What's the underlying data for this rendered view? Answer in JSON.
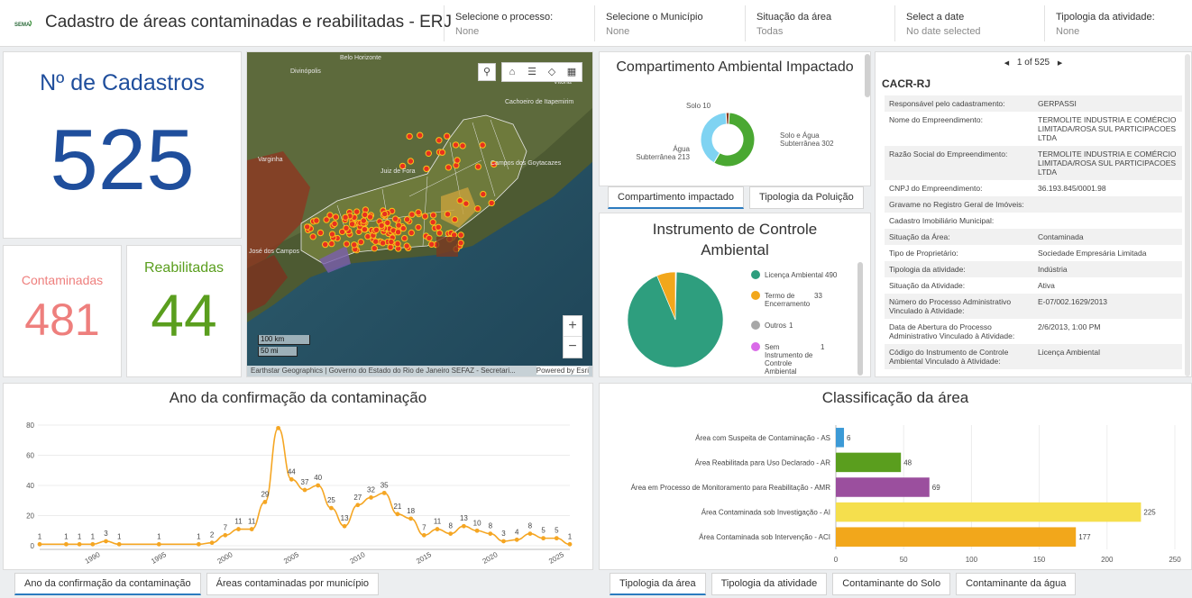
{
  "header": {
    "title": "Cadastro de áreas contaminadas e reabilitadas - ERJ",
    "logo_text": "SEMA",
    "filters": [
      {
        "label": "Selecione o processo:",
        "value": "None"
      },
      {
        "label": "Selecione o Município",
        "value": "None"
      },
      {
        "label": "Situação da área",
        "value": "Todas"
      },
      {
        "label": "Select a date",
        "value": "No date selected"
      },
      {
        "label": "Tipologia da atividade:",
        "value": "None"
      }
    ]
  },
  "indicators": {
    "total": {
      "title": "Nº de Cadastros",
      "value": "525",
      "color": "#1f4e9c"
    },
    "contaminadas": {
      "title": "Contaminadas",
      "value": "481",
      "color": "#ee7f7d"
    },
    "reabilitadas": {
      "title": "Reabilitadas",
      "value": "44",
      "color": "#5a9e1e"
    }
  },
  "map": {
    "toolbar_icons": [
      "search-icon",
      "home-icon",
      "list-icon",
      "layers-icon",
      "basemap-gallery-icon"
    ],
    "zoom_in": "+",
    "zoom_out": "−",
    "scale_km": "100 km",
    "scale_mi": "50 mi",
    "attribution": "Earthstar Geographics | Governo do Estado do Rio de Janeiro SEFAZ - Secretari...",
    "powered_by": "Powered by Esri",
    "place_labels": [
      "Belo Horizonte",
      "Divinópolis",
      "Cachoeiro de Itapemirim",
      "Vitória",
      "Varginha",
      "Juiz de Fora",
      "Campos dos Goytacazes",
      "José dos Campos"
    ]
  },
  "compartimento": {
    "title": "Compartimento Ambiental Impactado",
    "tabs": [
      "Compartimento impactado",
      "Tipologia da Poluição"
    ],
    "chart_data": {
      "type": "pie",
      "title": "Compartimento Ambiental Impactado",
      "donut": true,
      "slices": [
        {
          "name": "Solo e Água Subterrânea",
          "value": 302,
          "color": "#4aa832"
        },
        {
          "name": "Água Subterrânea",
          "value": 213,
          "color": "#7fd3f2"
        },
        {
          "name": "Solo",
          "value": 10,
          "color": "#8a3a1a"
        }
      ]
    },
    "labels": {
      "solo": "Solo 10",
      "agua": "Água Subterrânea 213",
      "solo_agua": "Solo e Água Subterrânea 302"
    }
  },
  "instrumento": {
    "title": "Instrumento de Controle Ambiental",
    "chart_data": {
      "type": "pie",
      "title": "Instrumento de Controle Ambiental",
      "legend": "right",
      "slices": [
        {
          "name": "Licença Ambiental",
          "value": 490,
          "color": "#2e9e7e"
        },
        {
          "name": "Termo de Encerramento",
          "value": 33,
          "color": "#f2a71b"
        },
        {
          "name": "Outros",
          "value": 1,
          "color": "#a7a7a7"
        },
        {
          "name": "Sem Instrumento de Controle Ambiental",
          "value": 1,
          "color": "#d96ae8"
        }
      ]
    },
    "legend": [
      {
        "label": "Licença Ambiental",
        "count": "490"
      },
      {
        "label": "Termo de Encerramento",
        "count": "33"
      },
      {
        "label": "Outros",
        "count": "1"
      },
      {
        "label": "Sem Instrumento de Controle Ambiental",
        "count": "1"
      }
    ]
  },
  "details": {
    "pager": "1 of 525",
    "prev": "◀",
    "next": "▶",
    "title": "CACR-RJ",
    "fields": [
      {
        "k": "Responsável pelo cadastramento:",
        "v": "GERPASSI"
      },
      {
        "k": "Nome do Empreendimento:",
        "v": "TERMOLITE INDUSTRIA E COMÉRCIO LIMITADA/ROSA SUL PARTICIPACOES LTDA"
      },
      {
        "k": "Razão Social do Empreendimento:",
        "v": "TERMOLITE INDUSTRIA E COMÉRCIO LIMITADA/ROSA SUL PARTICIPACOES LTDA"
      },
      {
        "k": "CNPJ do Empreendimento:",
        "v": "36.193.845/0001.98"
      },
      {
        "k": "Gravame no Registro Geral de Imóveis:",
        "v": ""
      },
      {
        "k": "Cadastro Imobiliário Municipal:",
        "v": ""
      },
      {
        "k": "Situação da Área:",
        "v": "Contaminada"
      },
      {
        "k": "Tipo de Proprietário:",
        "v": "Sociedade Empresária Limitada"
      },
      {
        "k": "Tipologia da atividade:",
        "v": "Indústria"
      },
      {
        "k": "Situação da Atividade:",
        "v": "Ativa"
      },
      {
        "k": "Número do Processo Administrativo Vinculado à Atividade:",
        "v": "E-07/002.1629/2013"
      },
      {
        "k": "Data de Abertura do Processo Administrativo Vinculado à Atividade:",
        "v": "2/6/2013, 1:00 PM"
      },
      {
        "k": "Código do Instrumento de Controle Ambiental Vinculado à Atividade:",
        "v": "Licença Ambiental"
      }
    ]
  },
  "ano": {
    "title": "Ano da confirmação da contaminação",
    "tabs": [
      "Ano da confirmação da contaminação",
      "Áreas contaminadas por município"
    ],
    "chart_data": {
      "type": "line",
      "title": "Ano da confirmação da contaminação",
      "color": "#f5a623",
      "ylim": [
        0,
        80
      ],
      "yticks": [
        0,
        20,
        40,
        60,
        80
      ],
      "xlim": [
        1986,
        2026
      ],
      "xticks": [
        1990,
        1995,
        2000,
        2005,
        2010,
        2015,
        2020,
        2025
      ],
      "x": [
        1986,
        1988,
        1989,
        1990,
        1991,
        1992,
        1995,
        1998,
        1999,
        2000,
        2001,
        2002,
        2003,
        2004,
        2005,
        2006,
        2007,
        2008,
        2009,
        2010,
        2011,
        2012,
        2013,
        2014,
        2015,
        2016,
        2017,
        2018,
        2019,
        2020,
        2021,
        2022,
        2023,
        2024,
        2025,
        2026
      ],
      "y": [
        1,
        1,
        1,
        1,
        3,
        1,
        1,
        1,
        2,
        7,
        11,
        11,
        29,
        78,
        44,
        37,
        40,
        25,
        13,
        27,
        32,
        35,
        21,
        18,
        7,
        11,
        8,
        13,
        10,
        8,
        3,
        4,
        8,
        5,
        5,
        1
      ],
      "labels": [
        "1",
        "1",
        "1",
        "1",
        "3",
        "1",
        "1",
        "1",
        "2",
        "7",
        "11",
        "11",
        "29",
        "",
        "44",
        "37",
        "40",
        "25",
        "13",
        "27",
        "32",
        "35",
        "21",
        "18",
        "7",
        "11",
        "8",
        "13",
        "10",
        "8",
        "3",
        "4",
        "8",
        "5",
        "5",
        "1"
      ]
    }
  },
  "classificacao": {
    "title": "Classificação da área",
    "tabs": [
      "Tipologia da área",
      "Tipologia da atividade",
      "Contaminante do Solo",
      "Contaminante da água"
    ],
    "chart_data": {
      "type": "bar",
      "orientation": "horizontal",
      "title": "Classificação da área",
      "categories": [
        "Área com Suspeita de Contaminação - AS",
        "Área Reabilitada para Uso Declarado - AR",
        "Área em Processo de Monitoramento para Reabilitação - AMR",
        "Área Contaminada sob Investigação - AI",
        "Área Contaminada sob Intervenção - ACI"
      ],
      "values": [
        6,
        48,
        69,
        225,
        177
      ],
      "colors": [
        "#3c9ad6",
        "#5a9e1e",
        "#9b4f9e",
        "#f5df4d",
        "#f2a71b"
      ],
      "xlim": [
        0,
        250
      ],
      "xticks": [
        0,
        50,
        100,
        150,
        200,
        250
      ]
    }
  }
}
